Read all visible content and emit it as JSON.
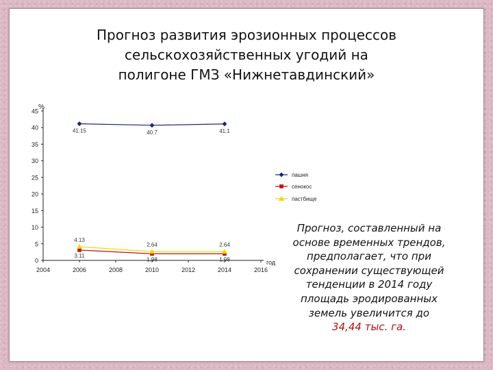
{
  "slide": {
    "title_lines": [
      "Прогноз развития эрозионных процессов",
      "сельскохозяйственных угодий на",
      "полигоне ГМЗ «Нижнетавдинский»"
    ],
    "note_lines": [
      "Прогноз, составленный на",
      "основе временных трендов,",
      "предполагает, что при",
      "сохранении существующей",
      "тенденции в 2014 году",
      "площадь эродированных",
      "земель увеличится до"
    ],
    "note_highlight": "34,44 тыс. га.",
    "note_highlight_color": "#b01010"
  },
  "chart_data": {
    "type": "line",
    "ylabel": "%",
    "xlabel": "год",
    "xlim": [
      2004,
      2016
    ],
    "ylim": [
      0,
      45
    ],
    "x_ticks": [
      2004,
      2006,
      2008,
      2010,
      2012,
      2014,
      2016
    ],
    "y_ticks": [
      0,
      5,
      10,
      15,
      20,
      25,
      30,
      35,
      40,
      45
    ],
    "x": [
      2006,
      2010,
      2014
    ],
    "series": [
      {
        "name": "пашня",
        "values": [
          41.15,
          40.7,
          41.1
        ],
        "labels": [
          "41.15",
          "40.7",
          "41.1"
        ],
        "color": "#1a2a6c",
        "marker": "diamond"
      },
      {
        "name": "сенокос",
        "values": [
          3.11,
          1.98,
          1.98
        ],
        "labels": [
          "3.11",
          "1.98",
          "1.98"
        ],
        "color": "#c01010",
        "marker": "square"
      },
      {
        "name": "пастбище",
        "values": [
          4.13,
          2.64,
          2.64
        ],
        "labels": [
          "4.13",
          "2.64",
          "2.64"
        ],
        "color": "#f0d800",
        "marker": "triangle"
      }
    ],
    "legend_position": "right",
    "grid": false
  }
}
